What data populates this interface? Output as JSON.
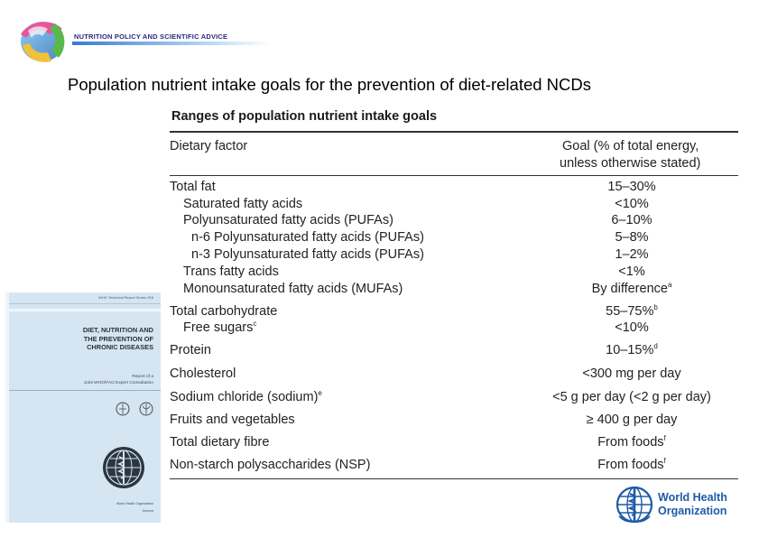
{
  "header": {
    "banner_text": "NUTRITION POLICY AND SCIENTIFIC ADVICE",
    "title": "Population nutrient intake goals for the prevention of diet-related NCDs"
  },
  "table": {
    "title": "Ranges of population nutrient intake goals",
    "col_factor": "Dietary factor",
    "col_goal_line1": "Goal (% of total energy,",
    "col_goal_line2": "unless otherwise stated)",
    "rows": [
      {
        "factor": "Total fat",
        "factor_sup": "",
        "goal": "15–30%",
        "goal_sup": ""
      },
      {
        "factor": "Saturated fatty acids",
        "factor_sup": "",
        "goal": "<10%",
        "goal_sup": ""
      },
      {
        "factor": "Polyunsaturated fatty acids (PUFAs)",
        "factor_sup": "",
        "goal": "6–10%",
        "goal_sup": ""
      },
      {
        "factor": "n-6 Polyunsaturated fatty acids (PUFAs)",
        "factor_sup": "",
        "goal": "5–8%",
        "goal_sup": ""
      },
      {
        "factor": "n-3 Polyunsaturated fatty acids (PUFAs)",
        "factor_sup": "",
        "goal": "1–2%",
        "goal_sup": ""
      },
      {
        "factor": "Trans fatty acids",
        "factor_sup": "",
        "goal": "<1%",
        "goal_sup": ""
      },
      {
        "factor": "Monounsaturated fatty acids (MUFAs)",
        "factor_sup": "",
        "goal": "By difference",
        "goal_sup": "a"
      },
      {
        "factor": "Total carbohydrate",
        "factor_sup": "",
        "goal": "55–75%",
        "goal_sup": "b"
      },
      {
        "factor": "Free sugars",
        "factor_sup": "c",
        "goal": "<10%",
        "goal_sup": ""
      },
      {
        "factor": "Protein",
        "factor_sup": "",
        "goal": "10–15%",
        "goal_sup": "d"
      },
      {
        "factor": "Cholesterol",
        "factor_sup": "",
        "goal": "<300 mg per day",
        "goal_sup": ""
      },
      {
        "factor": "Sodium chloride (sodium)",
        "factor_sup": "e",
        "goal": "<5 g per day (<2 g per day)",
        "goal_sup": ""
      },
      {
        "factor": "Fruits and vegetables",
        "factor_sup": "",
        "goal": "≥ 400 g per day",
        "goal_sup": ""
      },
      {
        "factor": "Total dietary fibre",
        "factor_sup": "",
        "goal": "From foods",
        "goal_sup": "f"
      },
      {
        "factor": "Non-starch polysaccharides (NSP)",
        "factor_sup": "",
        "goal": "From foods",
        "goal_sup": "f"
      }
    ]
  },
  "cover": {
    "series": "WHO Technical Report Series 916",
    "title_lines": [
      "DIET, NUTRITION AND",
      "THE PREVENTION OF",
      "CHRONIC DISEASES"
    ],
    "subtitle_lines": [
      "Report of a",
      "Joint WHO/FAO Expert Consultation"
    ],
    "org": "World Health Organization",
    "city": "Geneva"
  },
  "who": {
    "line1": "World Health",
    "line2": "Organization",
    "color": "#1d5aa6"
  }
}
